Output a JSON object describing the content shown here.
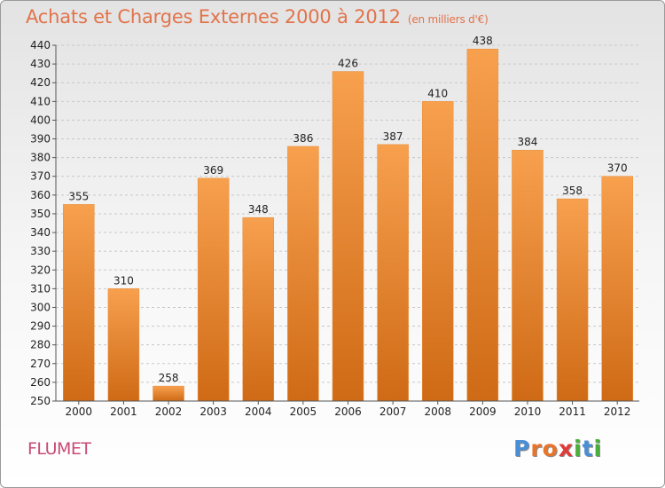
{
  "title": "Achats et Charges Externes 2000 à 2012",
  "subtitle": "(en milliers d'€)",
  "commune": "FLUMET",
  "logo": {
    "letters": [
      "P",
      "r",
      "o",
      "x",
      "i",
      "t",
      "i"
    ],
    "colors": [
      "#4a8fd6",
      "#e8742a",
      "#e8742a",
      "#e03a3a",
      "#4cae3c",
      "#4a8fd6",
      "#4cae3c"
    ]
  },
  "chart_data": {
    "type": "bar",
    "categories": [
      "2000",
      "2001",
      "2002",
      "2003",
      "2004",
      "2005",
      "2006",
      "2007",
      "2008",
      "2009",
      "2010",
      "2011",
      "2012"
    ],
    "values": [
      355,
      310,
      258,
      369,
      348,
      386,
      426,
      387,
      410,
      438,
      384,
      358,
      370
    ],
    "title": "Achats et Charges Externes 2000 à 2012",
    "subtitle": "(en milliers d'€)",
    "xlabel": "",
    "ylabel": "",
    "ylim": [
      250,
      440
    ],
    "yticks": [
      250,
      260,
      270,
      280,
      290,
      300,
      310,
      320,
      330,
      340,
      350,
      360,
      370,
      380,
      390,
      400,
      410,
      420,
      430,
      440
    ],
    "grid": true,
    "bar_color": "#f08a2c"
  }
}
